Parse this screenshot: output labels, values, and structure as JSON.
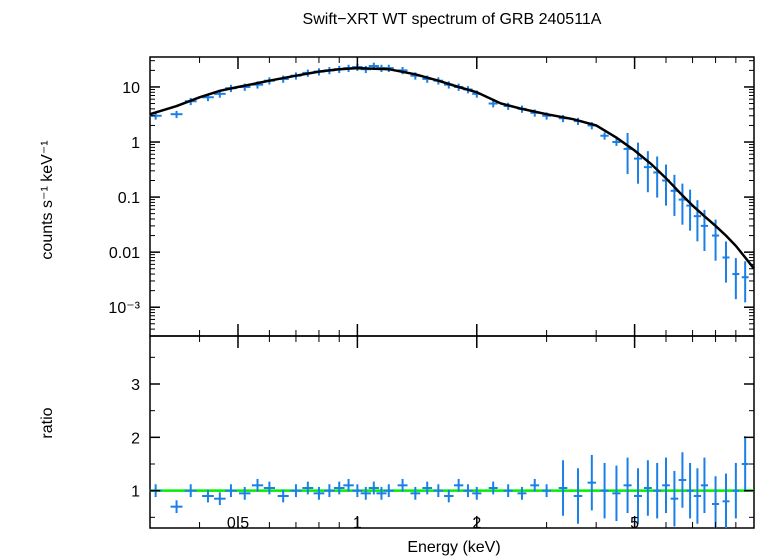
{
  "chart_data": {
    "type": "scatter",
    "title": "Swift−XRT WT spectrum of GRB 240511A",
    "xlabel": "Energy (keV)",
    "x_scale": "log",
    "xlim": [
      0.3,
      10
    ],
    "x_ticks": [
      {
        "value": 0.5,
        "label": "0.5"
      },
      {
        "value": 1,
        "label": "1"
      },
      {
        "value": 2,
        "label": "2"
      },
      {
        "value": 5,
        "label": "5"
      }
    ],
    "panels": [
      {
        "name": "spectrum",
        "ylabel": "counts s⁻¹ keV⁻¹",
        "y_scale": "log",
        "ylim": [
          0.0003,
          35
        ],
        "y_ticks": [
          {
            "value": 0.001,
            "label": "10⁻³"
          },
          {
            "value": 0.01,
            "label": "0.01"
          },
          {
            "value": 0.1,
            "label": "0.1"
          },
          {
            "value": 1,
            "label": "1"
          },
          {
            "value": 10,
            "label": "10"
          }
        ],
        "model": {
          "color": "#000000",
          "x": [
            0.3,
            0.35,
            0.4,
            0.45,
            0.5,
            0.6,
            0.7,
            0.8,
            0.9,
            1.0,
            1.2,
            1.4,
            1.6,
            1.8,
            2.0,
            2.3,
            2.6,
            3.0,
            3.5,
            4.0,
            4.5,
            5.0,
            5.5,
            6.0,
            6.5,
            7.0,
            7.5,
            8.0,
            8.5,
            9.0,
            9.5,
            10.0
          ],
          "y": [
            3.2,
            4.5,
            6.5,
            8.5,
            10,
            13,
            16,
            19,
            21,
            22,
            21,
            17,
            13,
            10,
            8,
            5,
            4,
            3.2,
            2.6,
            2.0,
            1.2,
            0.7,
            0.4,
            0.22,
            0.12,
            0.07,
            0.045,
            0.03,
            0.02,
            0.013,
            0.008,
            0.005
          ]
        },
        "data": {
          "color": "#1a7fe6",
          "x": [
            0.31,
            0.35,
            0.38,
            0.42,
            0.45,
            0.48,
            0.52,
            0.56,
            0.6,
            0.65,
            0.7,
            0.75,
            0.8,
            0.85,
            0.9,
            0.95,
            1.0,
            1.05,
            1.1,
            1.15,
            1.2,
            1.3,
            1.4,
            1.5,
            1.6,
            1.7,
            1.8,
            1.9,
            2.0,
            2.2,
            2.4,
            2.6,
            2.8,
            3.0,
            3.3,
            3.6,
            3.9,
            4.2,
            4.5,
            4.8,
            5.1,
            5.4,
            5.7,
            6.0,
            6.3,
            6.6,
            6.9,
            7.2,
            7.5,
            8.0,
            8.5,
            9.0,
            9.5
          ],
          "y": [
            3.0,
            3.2,
            5.5,
            6.5,
            7.5,
            9.5,
            10,
            11,
            13,
            14,
            16,
            18,
            19,
            20,
            21,
            22,
            23,
            21,
            24,
            22,
            22,
            20,
            16,
            14,
            13,
            11,
            10,
            9,
            7.5,
            5,
            4.5,
            4,
            3.4,
            3.0,
            2.7,
            2.4,
            2.0,
            1.3,
            1.0,
            0.75,
            0.5,
            0.35,
            0.28,
            0.2,
            0.13,
            0.09,
            0.07,
            0.045,
            0.03,
            0.02,
            0.008,
            0.004,
            0.0035
          ]
        }
      },
      {
        "name": "ratio",
        "ylabel": "ratio",
        "y_scale": "linear",
        "ylim": [
          0.3,
          3.9
        ],
        "y_ticks": [
          {
            "value": 1,
            "label": "1"
          },
          {
            "value": 2,
            "label": "2"
          },
          {
            "value": 3,
            "label": "3"
          }
        ],
        "reference_line": {
          "y": 1,
          "color": "#00ee00"
        },
        "data": {
          "color": "#1a7fe6",
          "x": [
            0.31,
            0.35,
            0.38,
            0.42,
            0.45,
            0.48,
            0.52,
            0.56,
            0.6,
            0.65,
            0.7,
            0.75,
            0.8,
            0.85,
            0.9,
            0.95,
            1.0,
            1.05,
            1.1,
            1.15,
            1.2,
            1.3,
            1.4,
            1.5,
            1.6,
            1.7,
            1.8,
            1.9,
            2.0,
            2.2,
            2.4,
            2.6,
            2.8,
            3.0,
            3.3,
            3.6,
            3.9,
            4.2,
            4.5,
            4.8,
            5.1,
            5.4,
            5.7,
            6.0,
            6.3,
            6.6,
            6.9,
            7.2,
            7.5,
            8.0,
            8.5,
            9.0,
            9.5
          ],
          "y": [
            1.0,
            0.7,
            1.0,
            0.9,
            0.85,
            1.0,
            0.95,
            1.1,
            1.05,
            0.9,
            1.0,
            1.05,
            0.95,
            1.0,
            1.05,
            1.1,
            1.0,
            0.95,
            1.05,
            0.95,
            1.0,
            1.1,
            0.95,
            1.05,
            1.0,
            0.9,
            1.1,
            1.0,
            0.95,
            1.05,
            1.0,
            0.95,
            1.1,
            1.0,
            1.05,
            0.9,
            1.15,
            1.0,
            0.95,
            1.1,
            0.9,
            1.05,
            1.0,
            1.1,
            0.85,
            1.2,
            1.0,
            0.9,
            1.1,
            0.75,
            0.8,
            1.0,
            1.5
          ]
        }
      }
    ]
  }
}
